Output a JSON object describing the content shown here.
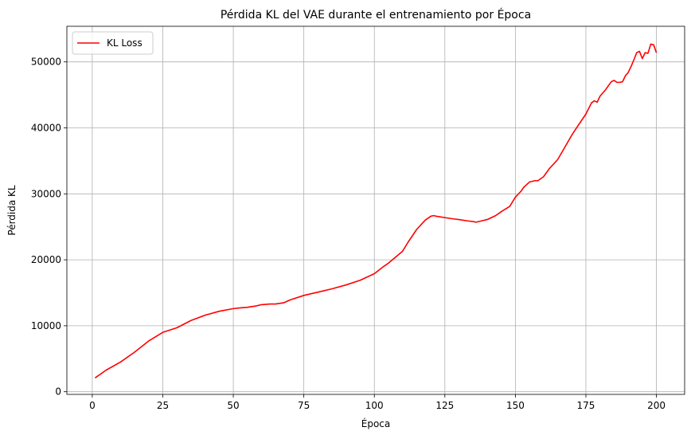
{
  "chart_data": {
    "type": "line",
    "title": "Pérdida KL del VAE durante el entrenamiento por Época",
    "xlabel": "Época",
    "ylabel": "Pérdida KL",
    "xlim": [
      -9,
      210
    ],
    "ylim": [
      -400,
      55400
    ],
    "xticks": [
      0,
      25,
      50,
      75,
      100,
      125,
      150,
      175,
      200
    ],
    "yticks": [
      0,
      10000,
      20000,
      30000,
      40000,
      50000
    ],
    "grid": true,
    "legend": {
      "position": "top-left"
    },
    "series": [
      {
        "name": "KL Loss",
        "color": "#ff0000",
        "x": [
          1,
          5,
          10,
          15,
          20,
          25,
          30,
          35,
          40,
          45,
          50,
          52,
          55,
          58,
          60,
          63,
          65,
          68,
          70,
          75,
          80,
          85,
          90,
          95,
          100,
          103,
          105,
          110,
          112,
          115,
          118,
          120,
          121,
          122,
          125,
          128,
          130,
          133,
          135,
          136,
          138,
          140,
          143,
          145,
          148,
          150,
          152,
          153,
          155,
          157,
          158,
          160,
          162,
          165,
          170,
          172,
          175,
          177,
          178,
          179,
          180,
          182,
          184,
          185,
          186,
          187,
          188,
          189,
          190,
          191,
          192,
          193,
          194,
          195,
          196,
          197,
          198,
          199,
          200
        ],
        "values": [
          2100,
          3300,
          4500,
          6000,
          7700,
          9000,
          9700,
          10800,
          11600,
          12200,
          12600,
          12700,
          12800,
          13000,
          13200,
          13300,
          13300,
          13500,
          13900,
          14600,
          15100,
          15600,
          16200,
          16900,
          17900,
          18900,
          19500,
          21300,
          22700,
          24600,
          26000,
          26600,
          26700,
          26600,
          26400,
          26200,
          26100,
          25900,
          25800,
          25700,
          25900,
          26100,
          26700,
          27300,
          28100,
          29500,
          30400,
          31000,
          31800,
          32000,
          32000,
          32600,
          33800,
          35200,
          38900,
          40200,
          42100,
          43800,
          44100,
          43900,
          44800,
          45800,
          47000,
          47200,
          46900,
          46900,
          47000,
          47900,
          48400,
          49300,
          50300,
          51400,
          51600,
          50500,
          51400,
          51300,
          52700,
          52600,
          51400
        ]
      }
    ]
  }
}
